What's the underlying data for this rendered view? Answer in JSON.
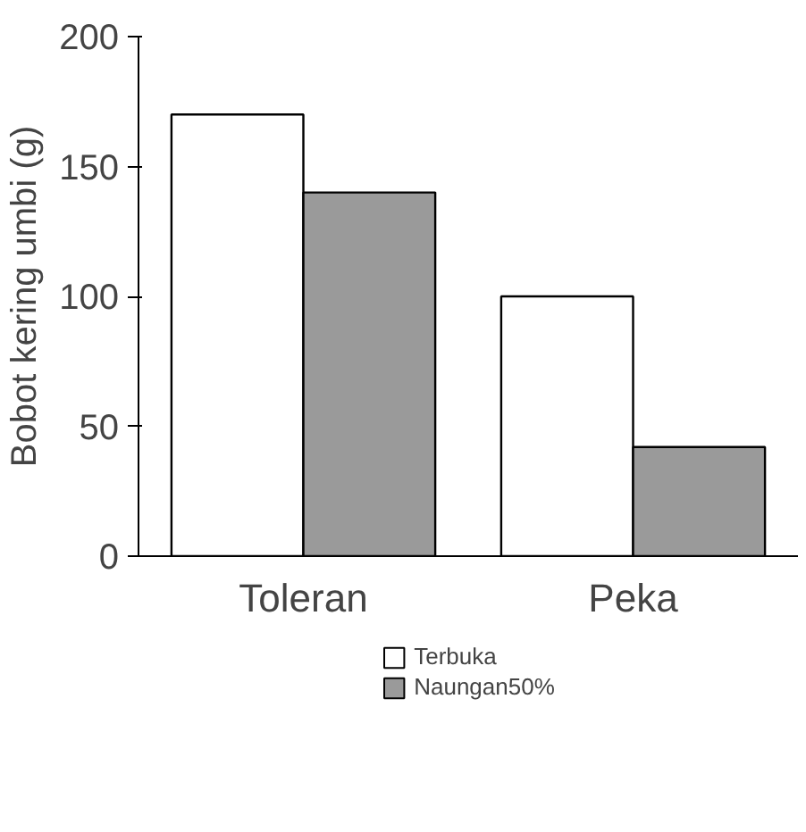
{
  "chart_data": {
    "type": "bar",
    "ylabel": "Bobot kering umbi (g)",
    "categories": [
      "Toleran",
      "Peka"
    ],
    "series": [
      {
        "name": "Terbuka",
        "color": "#ffffff",
        "values": [
          170,
          100
        ]
      },
      {
        "name": "Naungan50%",
        "color": "#9a9a9a",
        "values": [
          140,
          42
        ]
      }
    ],
    "ylim": [
      0,
      200
    ],
    "yticks": [
      0,
      50,
      100,
      150,
      200
    ],
    "grid": false,
    "legend": "bottom"
  }
}
